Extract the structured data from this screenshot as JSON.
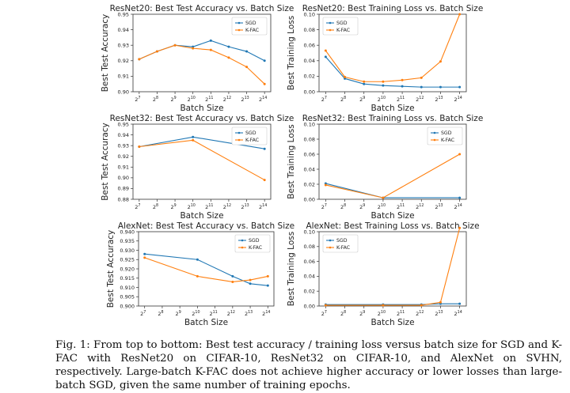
{
  "caption": "Fig. 1: From top to bottom: Best test accuracy / training loss versus batch size for SGD and K-FAC with ResNet20 on CIFAR-10, ResNet32 on CIFAR-10, and AlexNet on SVHN, respectively. Large-batch K-FAC does not achieve higher accuracy or lower losses than large-batch SGD, given the same number of training epochs.",
  "colors": {
    "sgd": "#1f77b4",
    "kfac": "#ff7f0e",
    "axis": "#333333"
  },
  "x_tick_labels": [
    "2",
    "2",
    "2",
    "2",
    "2",
    "2",
    "2",
    "2"
  ],
  "x_tick_exponents": [
    "7",
    "8",
    "9",
    "10",
    "11",
    "12",
    "13",
    "14"
  ],
  "chart_data": [
    {
      "type": "line",
      "title": "ResNet20: Best Test Accuracy vs. Batch Size",
      "xlabel": "Batch Size",
      "ylabel": "Best Test Accuracy",
      "x": [
        7,
        8,
        9,
        10,
        11,
        12,
        13,
        14
      ],
      "ylim": [
        0.9,
        0.95
      ],
      "yticks": [
        0.9,
        0.91,
        0.92,
        0.93,
        0.94,
        0.95
      ],
      "ytick_labels": [
        "0.90",
        "0.91",
        "0.92",
        "0.93",
        "0.94",
        "0.95"
      ],
      "legend": "top-right",
      "series": [
        {
          "name": "SGD",
          "values": [
            0.921,
            0.926,
            0.93,
            0.929,
            0.933,
            0.929,
            0.926,
            0.92
          ]
        },
        {
          "name": "K-FAC",
          "values": [
            0.921,
            0.926,
            0.93,
            0.928,
            0.927,
            0.922,
            0.916,
            0.905
          ]
        }
      ]
    },
    {
      "type": "line",
      "title": "ResNet20: Best Training Loss vs. Batch Size",
      "xlabel": "Batch Size",
      "ylabel": "Best Training Loss",
      "x": [
        7,
        8,
        9,
        10,
        11,
        12,
        13,
        14
      ],
      "ylim": [
        0.0,
        0.1
      ],
      "yticks": [
        0.0,
        0.02,
        0.04,
        0.06,
        0.08,
        0.1
      ],
      "ytick_labels": [
        "0.00",
        "0.02",
        "0.04",
        "0.06",
        "0.08",
        "0.10"
      ],
      "legend": "top-left",
      "series": [
        {
          "name": "SGD",
          "values": [
            0.045,
            0.017,
            0.01,
            0.008,
            0.007,
            0.006,
            0.006,
            0.006
          ]
        },
        {
          "name": "K-FAC",
          "values": [
            0.053,
            0.019,
            0.013,
            0.013,
            0.015,
            0.018,
            0.039,
            0.1
          ]
        }
      ]
    },
    {
      "type": "line",
      "title": "ResNet32: Best Test Accuracy vs. Batch Size",
      "xlabel": "Batch Size",
      "ylabel": "Best Test Accuracy",
      "x": [
        7,
        10,
        14
      ],
      "ylim": [
        0.88,
        0.95
      ],
      "yticks": [
        0.88,
        0.89,
        0.9,
        0.91,
        0.92,
        0.93,
        0.94,
        0.95
      ],
      "ytick_labels": [
        "0.88",
        "0.89",
        "0.90",
        "0.91",
        "0.92",
        "0.93",
        "0.94",
        "0.95"
      ],
      "legend": "top-right",
      "series": [
        {
          "name": "SGD",
          "values": [
            0.929,
            0.938,
            0.927
          ]
        },
        {
          "name": "K-FAC",
          "values": [
            0.929,
            0.935,
            0.898
          ]
        }
      ]
    },
    {
      "type": "line",
      "title": "ResNet32: Best Training Loss vs. Batch Size",
      "xlabel": "Batch Size",
      "ylabel": "Best Training Loss",
      "x": [
        7,
        10,
        14
      ],
      "ylim": [
        0.0,
        0.1
      ],
      "yticks": [
        0.0,
        0.02,
        0.04,
        0.06,
        0.08,
        0.1
      ],
      "ytick_labels": [
        "0.00",
        "0.02",
        "0.04",
        "0.06",
        "0.08",
        "0.10"
      ],
      "legend": "top-right",
      "series": [
        {
          "name": "SGD",
          "values": [
            0.021,
            0.002,
            0.002
          ]
        },
        {
          "name": "K-FAC",
          "values": [
            0.019,
            0.002,
            0.06
          ]
        }
      ]
    },
    {
      "type": "line",
      "title": "AlexNet: Best Test Accuracy vs. Batch Size",
      "xlabel": "Batch Size",
      "ylabel": "Best Test Accuracy",
      "x": [
        7,
        10,
        12,
        13,
        14
      ],
      "ylim": [
        0.9,
        0.94
      ],
      "yticks": [
        0.9,
        0.905,
        0.91,
        0.915,
        0.92,
        0.925,
        0.93,
        0.935,
        0.94
      ],
      "ytick_labels": [
        "0.900",
        "0.905",
        "0.910",
        "0.915",
        "0.920",
        "0.925",
        "0.930",
        "0.935",
        "0.940"
      ],
      "legend": "top-right",
      "series": [
        {
          "name": "SGD",
          "values": [
            0.928,
            0.925,
            0.916,
            0.912,
            0.911
          ]
        },
        {
          "name": "K-FAC",
          "values": [
            0.926,
            0.916,
            0.913,
            0.914,
            0.916
          ]
        }
      ]
    },
    {
      "type": "line",
      "title": "AlexNet: Best Training Loss vs. Batch Size",
      "xlabel": "Batch Size",
      "ylabel": "Best Training Loss",
      "x": [
        7,
        10,
        12,
        13,
        14
      ],
      "ylim": [
        0.0,
        0.1
      ],
      "yticks": [
        0.0,
        0.02,
        0.04,
        0.06,
        0.08,
        0.1
      ],
      "ytick_labels": [
        "0.00",
        "0.02",
        "0.04",
        "0.06",
        "0.08",
        "0.10"
      ],
      "legend": "top-left",
      "series": [
        {
          "name": "SGD",
          "values": [
            0.002,
            0.002,
            0.002,
            0.003,
            0.003
          ]
        },
        {
          "name": "K-FAC",
          "values": [
            0.001,
            0.001,
            0.001,
            0.005,
            0.105
          ]
        }
      ]
    }
  ]
}
